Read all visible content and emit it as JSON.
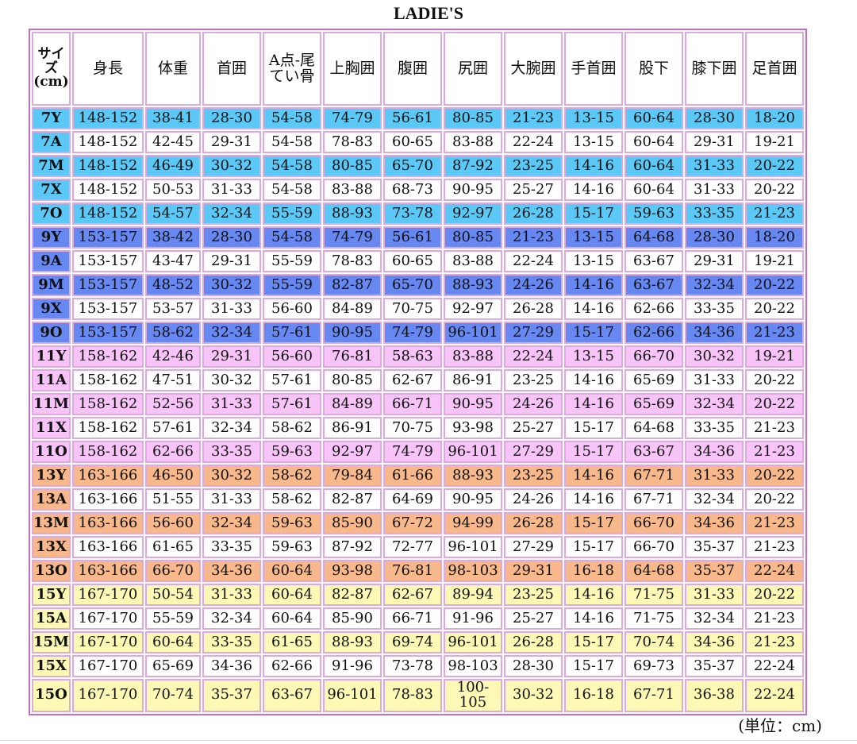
{
  "title": "LADIE'S",
  "unit_note": "(単位：cm)",
  "headers": [
    "サイズ\n(cm)",
    "身長",
    "体重",
    "首囲",
    "A点-尾てい骨",
    "上胸囲",
    "腹囲",
    "尻囲",
    "大腕囲",
    "手首囲",
    "股下",
    "膝下囲",
    "足首囲"
  ],
  "row_colors": {
    "7": "#5cc8f5",
    "9": "#6688f0",
    "11": "#f6c4f6",
    "13": "#f7b98c",
    "15": "#fcf9b6"
  },
  "rows": [
    {
      "size": "7Y",
      "shaded": true,
      "group": "light",
      "values": [
        "148-152",
        "38-41",
        "28-30",
        "54-58",
        "74-79",
        "56-61",
        "80-85",
        "21-23",
        "13-15",
        "60-64",
        "28-30",
        "18-20"
      ]
    },
    {
      "size": "7A",
      "shaded": false,
      "group": "light",
      "values": [
        "148-152",
        "42-45",
        "29-31",
        "54-58",
        "78-83",
        "60-65",
        "83-88",
        "22-24",
        "13-15",
        "60-64",
        "29-31",
        "19-21"
      ]
    },
    {
      "size": "7M",
      "shaded": true,
      "group": "light",
      "values": [
        "148-152",
        "46-49",
        "30-32",
        "54-58",
        "80-85",
        "65-70",
        "87-92",
        "23-25",
        "14-16",
        "60-64",
        "31-33",
        "20-22"
      ]
    },
    {
      "size": "7X",
      "shaded": false,
      "group": "light",
      "values": [
        "148-152",
        "50-53",
        "31-33",
        "54-58",
        "83-88",
        "68-73",
        "90-95",
        "25-27",
        "14-16",
        "60-64",
        "31-33",
        "20-22"
      ]
    },
    {
      "size": "7O",
      "shaded": true,
      "group": "light",
      "values": [
        "148-152",
        "54-57",
        "32-34",
        "55-59",
        "88-93",
        "73-78",
        "92-97",
        "26-28",
        "15-17",
        "59-63",
        "33-35",
        "21-23"
      ]
    },
    {
      "size": "9Y",
      "shaded": true,
      "group": "blue",
      "values": [
        "153-157",
        "38-42",
        "28-30",
        "54-58",
        "74-79",
        "56-61",
        "80-85",
        "21-23",
        "13-15",
        "64-68",
        "28-30",
        "18-20"
      ]
    },
    {
      "size": "9A",
      "shaded": false,
      "group": "blue",
      "values": [
        "153-157",
        "43-47",
        "29-31",
        "55-59",
        "78-83",
        "60-65",
        "83-88",
        "22-24",
        "13-15",
        "63-67",
        "29-31",
        "19-21"
      ]
    },
    {
      "size": "9M",
      "shaded": true,
      "group": "blue",
      "values": [
        "153-157",
        "48-52",
        "30-32",
        "55-59",
        "82-87",
        "65-70",
        "88-93",
        "24-26",
        "14-16",
        "63-67",
        "32-34",
        "20-22"
      ]
    },
    {
      "size": "9X",
      "shaded": false,
      "group": "blue",
      "values": [
        "153-157",
        "53-57",
        "31-33",
        "56-60",
        "84-89",
        "70-75",
        "92-97",
        "26-28",
        "14-16",
        "62-66",
        "33-35",
        "20-22"
      ]
    },
    {
      "size": "9O",
      "shaded": true,
      "group": "blue",
      "values": [
        "153-157",
        "58-62",
        "32-34",
        "57-61",
        "90-95",
        "74-79",
        "96-101",
        "27-29",
        "15-17",
        "62-66",
        "34-36",
        "21-23"
      ]
    },
    {
      "size": "11Y",
      "shaded": true,
      "group": "pink",
      "values": [
        "158-162",
        "42-46",
        "29-31",
        "56-60",
        "76-81",
        "58-63",
        "83-88",
        "22-24",
        "13-15",
        "66-70",
        "30-32",
        "19-21"
      ]
    },
    {
      "size": "11A",
      "shaded": false,
      "group": "pink",
      "values": [
        "158-162",
        "47-51",
        "30-32",
        "57-61",
        "80-85",
        "62-67",
        "86-91",
        "23-25",
        "14-16",
        "65-69",
        "31-33",
        "20-22"
      ]
    },
    {
      "size": "11M",
      "shaded": true,
      "group": "pink",
      "values": [
        "158-162",
        "52-56",
        "31-33",
        "57-61",
        "84-89",
        "66-71",
        "90-95",
        "24-26",
        "14-16",
        "65-69",
        "32-34",
        "20-22"
      ]
    },
    {
      "size": "11X",
      "shaded": false,
      "group": "pink",
      "values": [
        "158-162",
        "57-61",
        "32-34",
        "58-62",
        "86-91",
        "70-75",
        "93-98",
        "25-27",
        "15-17",
        "64-68",
        "33-35",
        "21-23"
      ]
    },
    {
      "size": "11O",
      "shaded": true,
      "group": "pink",
      "values": [
        "158-162",
        "62-66",
        "33-35",
        "59-63",
        "92-97",
        "74-79",
        "96-101",
        "27-29",
        "15-17",
        "63-67",
        "34-36",
        "21-23"
      ]
    },
    {
      "size": "13Y",
      "shaded": true,
      "group": "orange",
      "values": [
        "163-166",
        "46-50",
        "30-32",
        "58-62",
        "79-84",
        "61-66",
        "88-93",
        "23-25",
        "14-16",
        "67-71",
        "31-33",
        "20-22"
      ]
    },
    {
      "size": "13A",
      "shaded": false,
      "group": "orange",
      "values": [
        "163-166",
        "51-55",
        "31-33",
        "58-62",
        "82-87",
        "64-69",
        "90-95",
        "24-26",
        "14-16",
        "67-71",
        "32-34",
        "20-22"
      ]
    },
    {
      "size": "13M",
      "shaded": true,
      "group": "orange",
      "values": [
        "163-166",
        "56-60",
        "32-34",
        "59-63",
        "85-90",
        "67-72",
        "94-99",
        "26-28",
        "15-17",
        "66-70",
        "34-36",
        "21-23"
      ]
    },
    {
      "size": "13X",
      "shaded": false,
      "group": "orange",
      "values": [
        "163-166",
        "61-65",
        "33-35",
        "59-63",
        "87-92",
        "72-77",
        "96-101",
        "27-29",
        "15-17",
        "66-70",
        "35-37",
        "21-23"
      ]
    },
    {
      "size": "13O",
      "shaded": true,
      "group": "orange",
      "values": [
        "163-166",
        "66-70",
        "34-36",
        "60-64",
        "93-98",
        "76-81",
        "98-103",
        "29-31",
        "16-18",
        "64-68",
        "35-37",
        "22-24"
      ]
    },
    {
      "size": "15Y",
      "shaded": true,
      "group": "yellow",
      "values": [
        "167-170",
        "50-54",
        "31-33",
        "60-64",
        "82-87",
        "62-67",
        "89-94",
        "23-25",
        "14-16",
        "71-75",
        "31-33",
        "20-22"
      ]
    },
    {
      "size": "15A",
      "shaded": false,
      "group": "yellow",
      "values": [
        "167-170",
        "55-59",
        "32-34",
        "60-64",
        "85-90",
        "66-71",
        "91-96",
        "25-27",
        "14-16",
        "71-75",
        "32-34",
        "21-23"
      ]
    },
    {
      "size": "15M",
      "shaded": true,
      "group": "yellow",
      "values": [
        "167-170",
        "60-64",
        "33-35",
        "61-65",
        "88-93",
        "69-74",
        "96-101",
        "26-28",
        "15-17",
        "70-74",
        "34-36",
        "21-23"
      ]
    },
    {
      "size": "15X",
      "shaded": false,
      "group": "yellow",
      "values": [
        "167-170",
        "65-69",
        "34-36",
        "62-66",
        "91-96",
        "73-78",
        "98-103",
        "28-30",
        "15-17",
        "69-73",
        "35-37",
        "22-24"
      ]
    },
    {
      "size": "15O",
      "shaded": true,
      "group": "yellow",
      "values": [
        "167-170",
        "70-74",
        "35-37",
        "63-67",
        "96-101",
        "78-83",
        "100-105",
        "30-32",
        "16-18",
        "67-71",
        "36-38",
        "22-24"
      ]
    }
  ]
}
